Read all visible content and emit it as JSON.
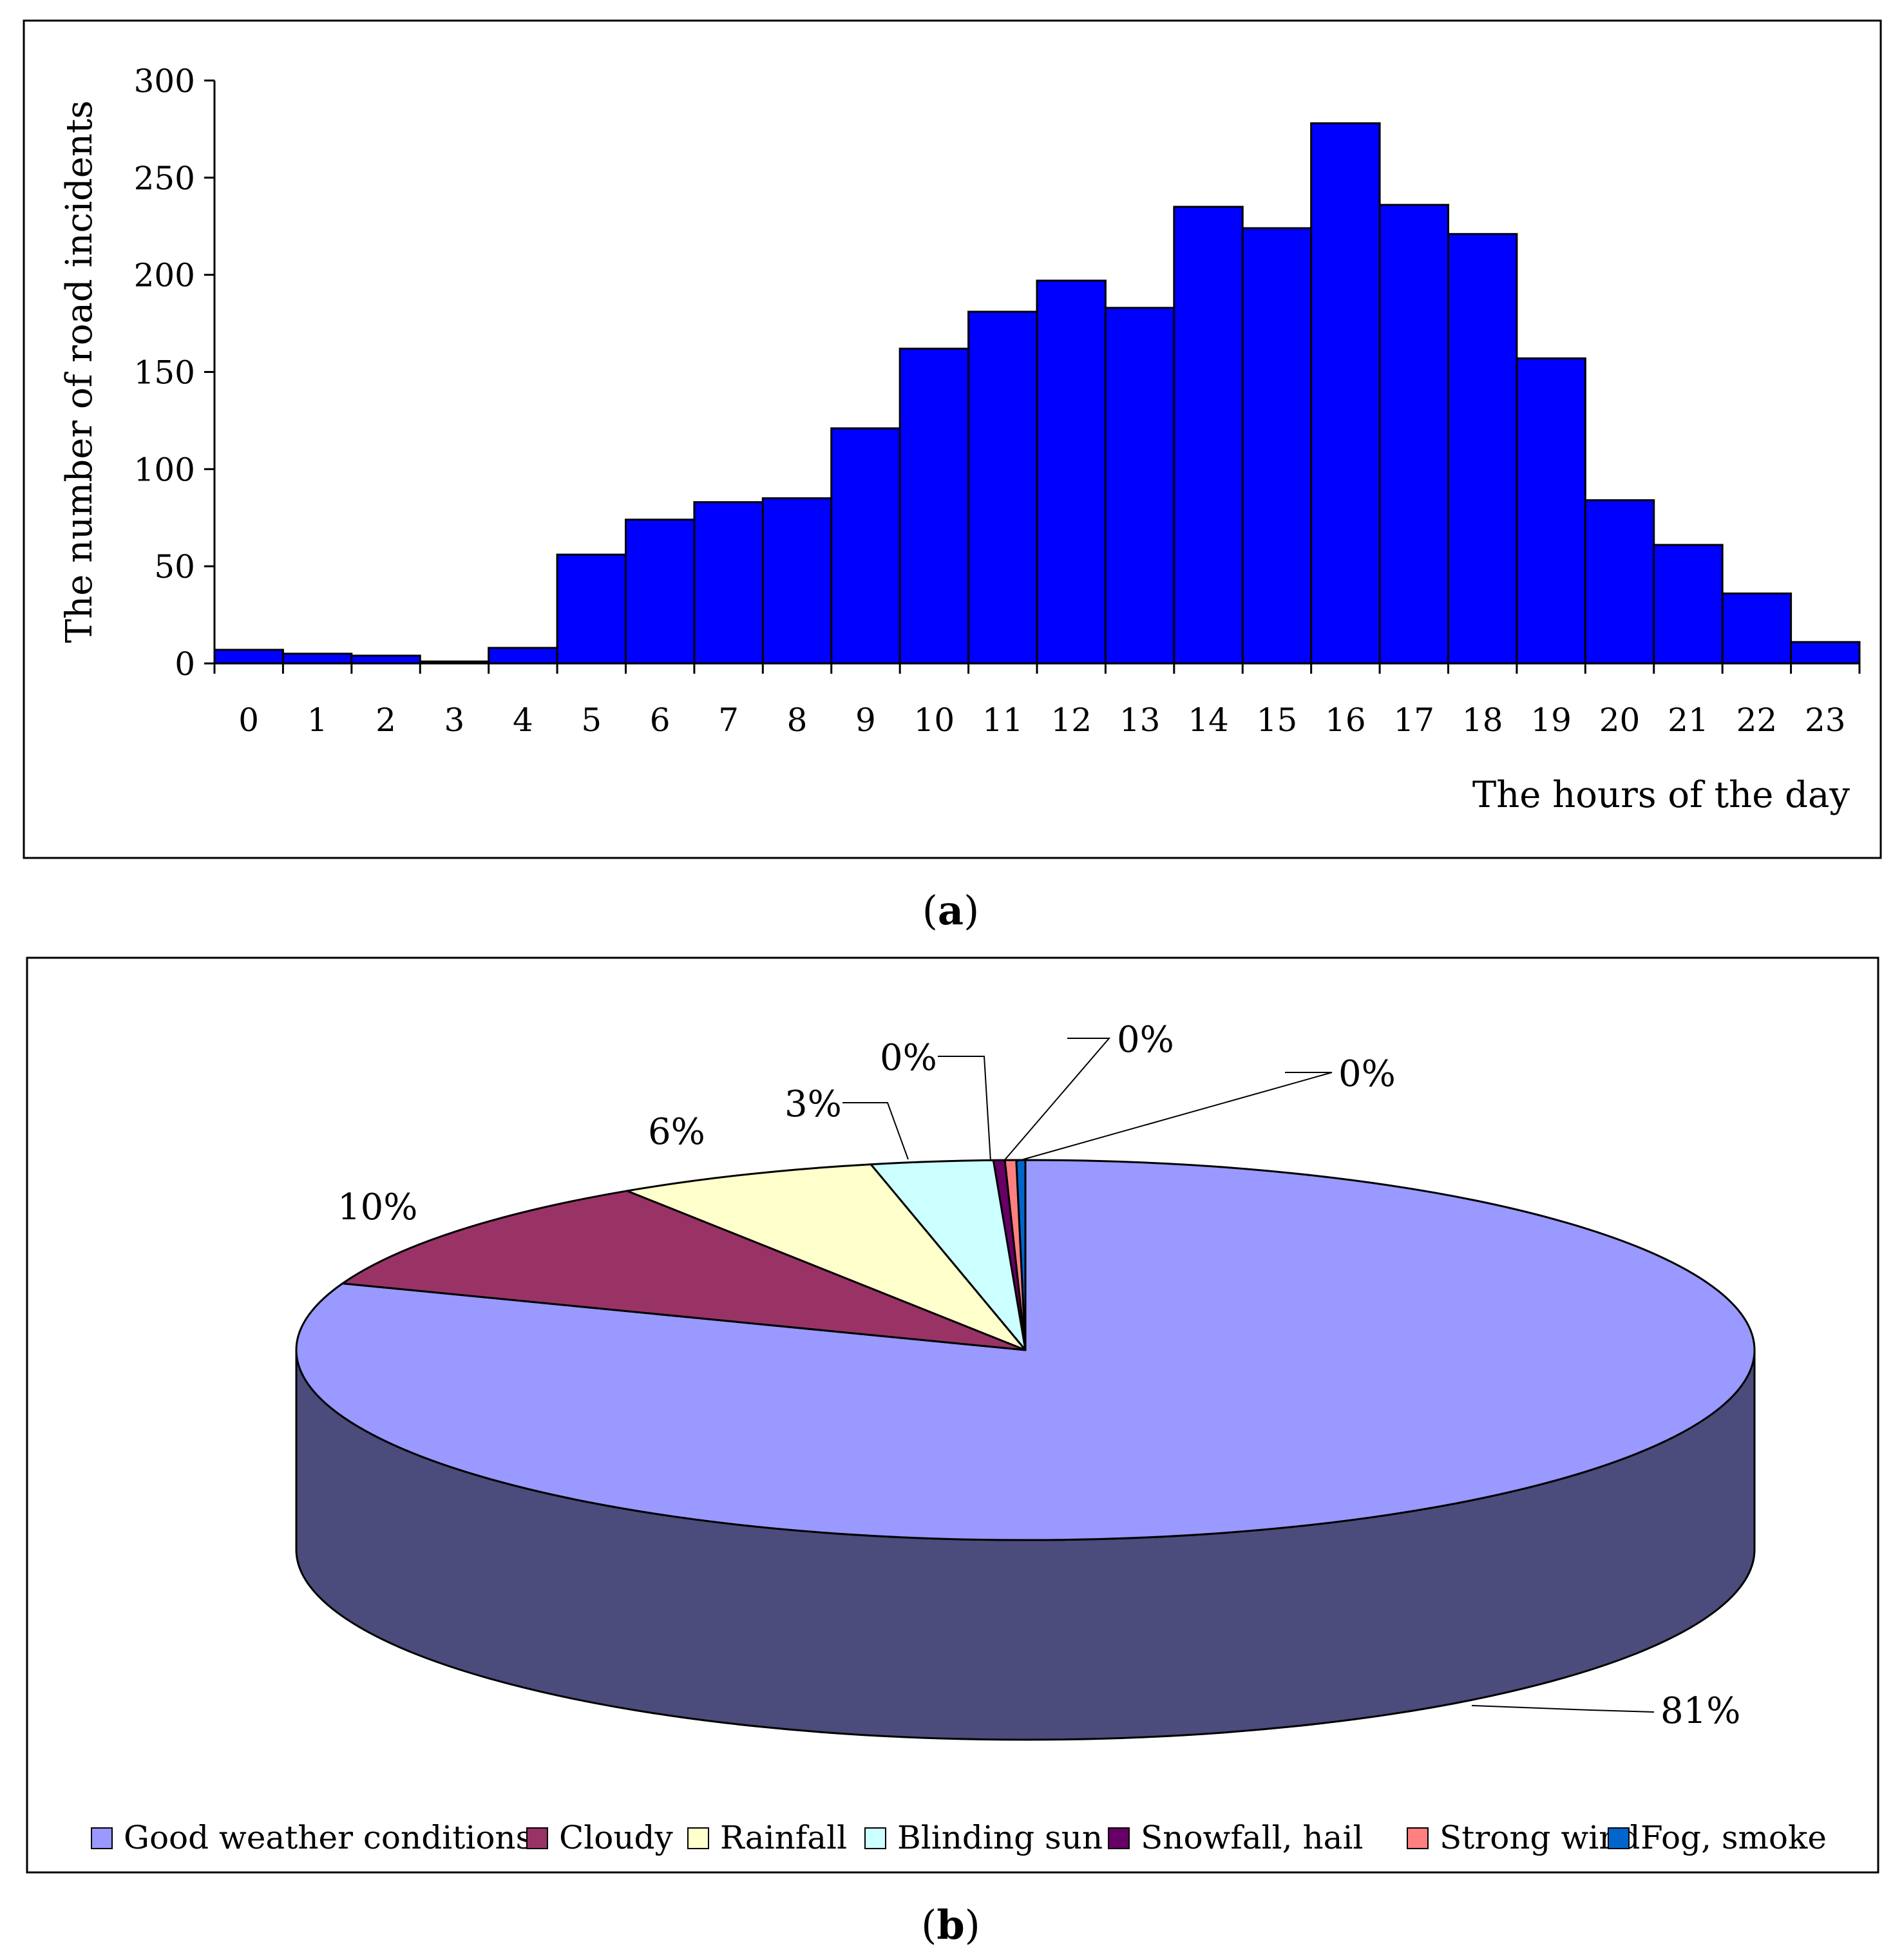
{
  "panels": [
    {
      "caption_open": "(",
      "caption_letter": "a",
      "caption_close": ")"
    },
    {
      "caption_open": "(",
      "caption_letter": "b",
      "caption_close": ")"
    }
  ],
  "chart_data": [
    {
      "type": "bar",
      "title": "",
      "xlabel": "The hours of the day",
      "ylabel": "The number of road incidents",
      "ylim": [
        0,
        300
      ],
      "yticks": [
        0,
        50,
        100,
        150,
        200,
        250,
        300
      ],
      "categories": [
        "0",
        "1",
        "2",
        "3",
        "4",
        "5",
        "6",
        "7",
        "8",
        "9",
        "10",
        "11",
        "12",
        "13",
        "14",
        "15",
        "16",
        "17",
        "18",
        "19",
        "20",
        "21",
        "22",
        "23"
      ],
      "values": [
        7,
        5,
        4,
        1,
        8,
        56,
        74,
        83,
        85,
        121,
        162,
        181,
        197,
        183,
        235,
        224,
        278,
        236,
        221,
        157,
        84,
        61,
        36,
        11
      ],
      "bar_color": "#0000ff",
      "grid": false
    },
    {
      "type": "pie",
      "style": "3d",
      "labels": [
        "Good weather conditions",
        "Cloudy",
        "Rainfall",
        "Blinding sun",
        "Snowfall, hail",
        "Strong wind",
        "Fog, smoke"
      ],
      "values": [
        80.7,
        10.1,
        5.8,
        2.7,
        0.25,
        0.25,
        0.2
      ],
      "percent_labels": [
        "81%",
        "10%",
        "6%",
        "3%",
        "0%",
        "0%",
        "0%"
      ],
      "colors": [
        "#9999ff",
        "#993366",
        "#ffffcc",
        "#ccffff",
        "#660066",
        "#ff8080",
        "#0066cc"
      ],
      "side_color": "#4b4b7c",
      "legend": "bottom"
    }
  ]
}
